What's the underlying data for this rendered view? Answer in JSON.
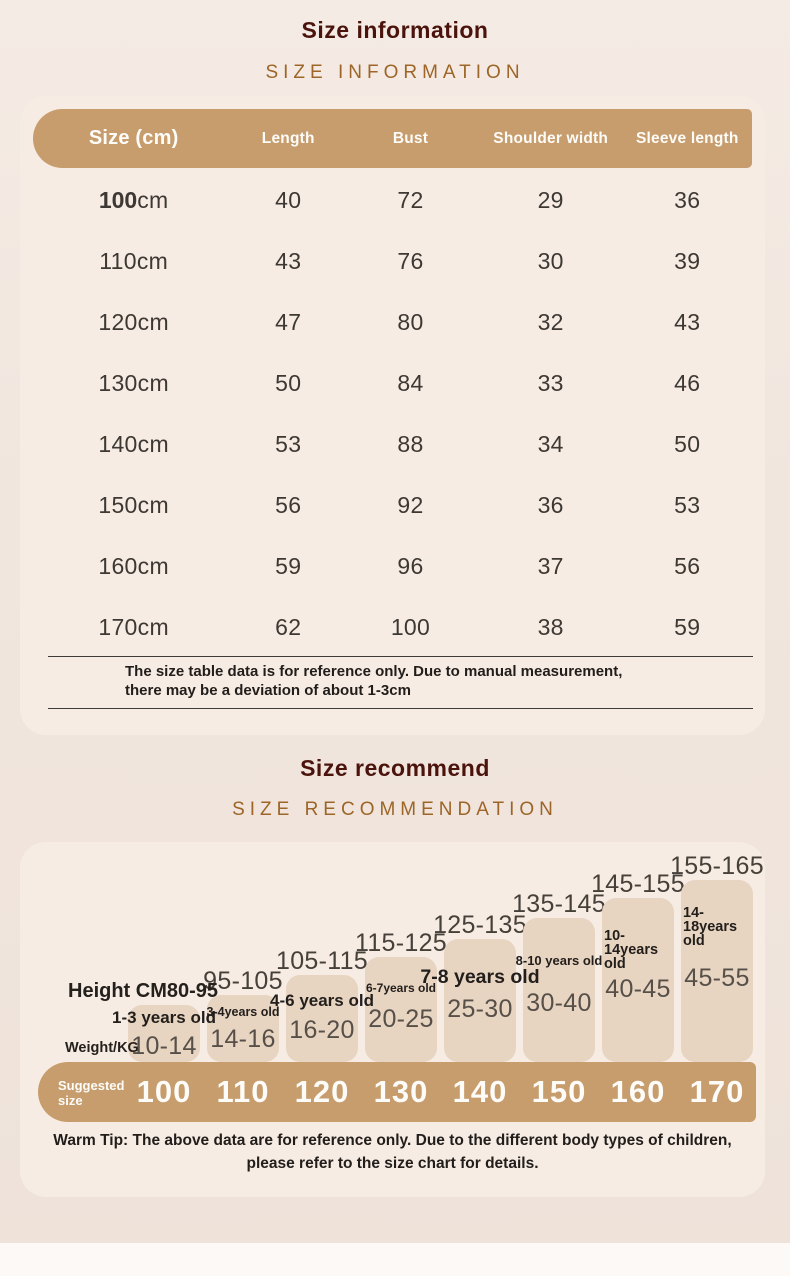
{
  "colors": {
    "accent_tan": "#c79d6e",
    "card_bg": "#f7ece4",
    "page_bg": "#f1e6de",
    "bar_fill": "#e7d4c1",
    "title_maroon": "#4a140d",
    "subtitle_gold": "#9d6527",
    "text_dark": "#2e2a26",
    "white_text": "#fdfcf9"
  },
  "section1": {
    "title": "Size information",
    "subtitle": "SIZE INFORMATION",
    "table": {
      "headers": [
        "Size (cm)",
        "Length",
        "Bust",
        "Shoulder width",
        "Sleeve length"
      ],
      "unit": "cm",
      "rows": [
        {
          "size": "100",
          "bold": true,
          "length": "40",
          "bust": "72",
          "shoulder": "29",
          "sleeve": "36"
        },
        {
          "size": "110",
          "bold": false,
          "length": "43",
          "bust": "76",
          "shoulder": "30",
          "sleeve": "39"
        },
        {
          "size": "120",
          "bold": false,
          "length": "47",
          "bust": "80",
          "shoulder": "32",
          "sleeve": "43"
        },
        {
          "size": "130",
          "bold": false,
          "length": "50",
          "bust": "84",
          "shoulder": "33",
          "sleeve": "46"
        },
        {
          "size": "140",
          "bold": false,
          "length": "53",
          "bust": "88",
          "shoulder": "34",
          "sleeve": "50"
        },
        {
          "size": "150",
          "bold": false,
          "length": "56",
          "bust": "92",
          "shoulder": "36",
          "sleeve": "53"
        },
        {
          "size": "160",
          "bold": false,
          "length": "59",
          "bust": "96",
          "shoulder": "37",
          "sleeve": "56"
        },
        {
          "size": "170",
          "bold": false,
          "length": "62",
          "bust": "100",
          "shoulder": "38",
          "sleeve": "59"
        }
      ],
      "note_line1": "The size table data is for reference only. Due to manual measurement,",
      "note_line2": "there may be a deviation of about 1-3cm"
    }
  },
  "section2": {
    "title": "Size recommend",
    "subtitle": "SIZE RECOMMENDATION",
    "chart": {
      "type": "step-bar",
      "axis_height_label": "Height CM80-95",
      "axis_weight_label": "Weight/KG",
      "suggested_label_lines": [
        "Suggested",
        "size"
      ],
      "columns": [
        {
          "size": "100",
          "height_range": "",
          "age_lines": [
            "1-3 years old"
          ],
          "weight": "10-14"
        },
        {
          "size": "110",
          "height_range": "95-105",
          "age_lines": [
            "3-4years old"
          ],
          "weight": "14-16"
        },
        {
          "size": "120",
          "height_range": "105-115",
          "age_lines": [
            "4-6 years old"
          ],
          "weight": "16-20"
        },
        {
          "size": "130",
          "height_range": "115-125",
          "age_lines": [
            "6-7years old"
          ],
          "weight": "20-25"
        },
        {
          "size": "140",
          "height_range": "125-135",
          "age_lines": [
            "7-8 years old"
          ],
          "weight": "25-30"
        },
        {
          "size": "150",
          "height_range": "135-145",
          "age_lines": [
            "8-10 years old"
          ],
          "weight": "30-40"
        },
        {
          "size": "160",
          "height_range": "145-155",
          "age_lines": [
            "10-14years",
            "old"
          ],
          "weight": "40-45"
        },
        {
          "size": "170",
          "height_range": "155-165",
          "age_lines": [
            "14-18years",
            "old"
          ],
          "weight": "45-55"
        }
      ]
    },
    "warm_tip_line1": "Warm Tip: The above data are for reference only. Due to the different body types of children,",
    "warm_tip_line2": "please refer to the size chart for details."
  }
}
